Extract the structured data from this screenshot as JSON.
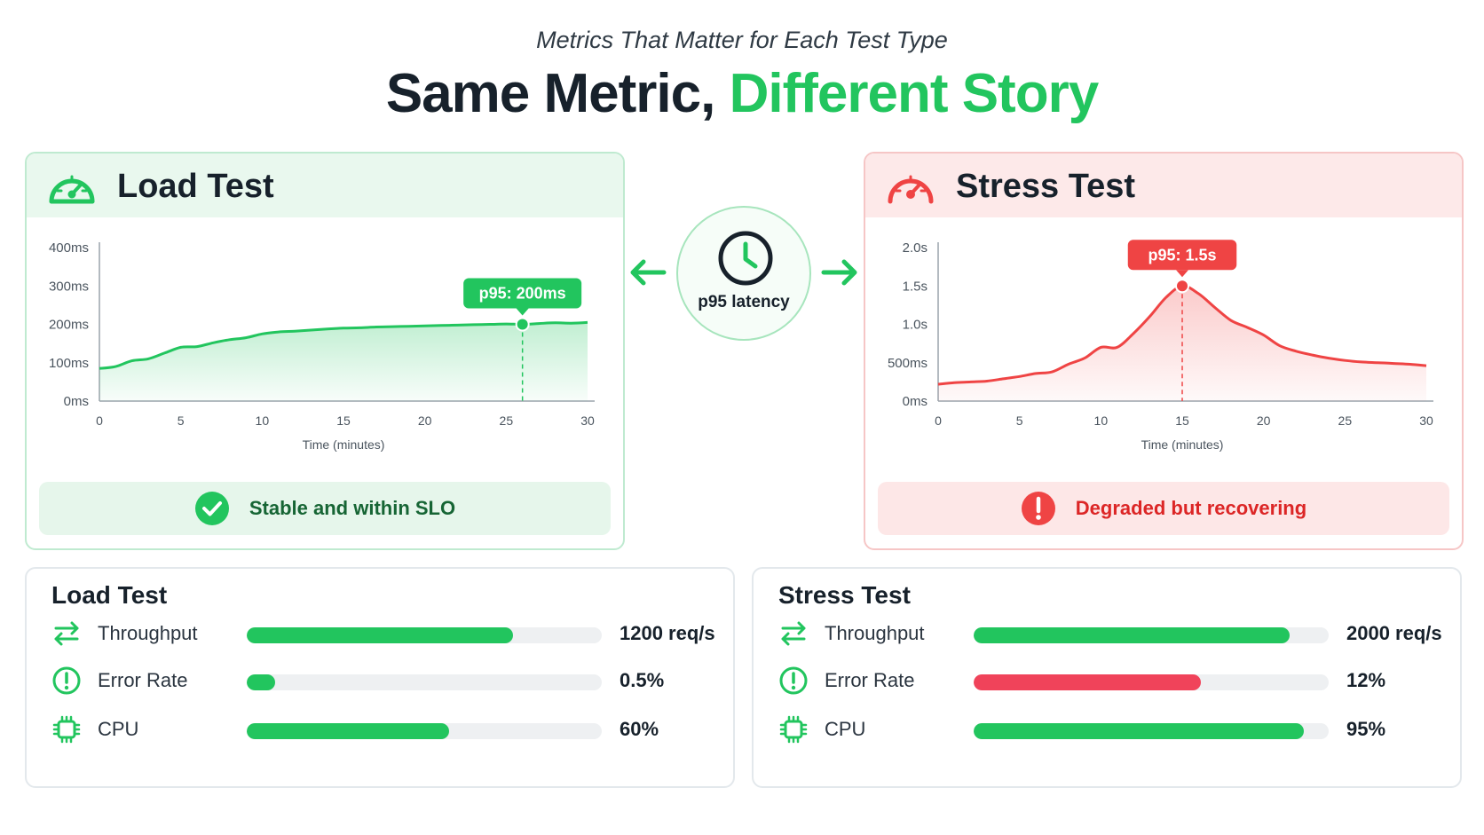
{
  "header": {
    "subtitle": "Metrics That Matter for Each Test Type",
    "title_main": "Same Metric, ",
    "title_accent": "Different Story"
  },
  "center": {
    "label": "p95 latency",
    "icon": "clock-icon"
  },
  "colors": {
    "green": "#22c55e",
    "red": "#ef4444",
    "dark": "#17212b"
  },
  "chart_data": [
    {
      "type": "line",
      "panel_title": "Load Test",
      "title": "",
      "xlabel": "Time (minutes)",
      "ylabel": "",
      "xlim": [
        0,
        30
      ],
      "ylim": [
        0,
        400
      ],
      "x_ticks": [
        0,
        5,
        10,
        15,
        20,
        25,
        30
      ],
      "x_tick_labels": [
        "0",
        "5",
        "10",
        "15",
        "20",
        "25",
        "30"
      ],
      "y_ticks": [
        0,
        100,
        200,
        300,
        400
      ],
      "y_tick_labels": [
        "0ms",
        "100ms",
        "200ms",
        "300ms",
        "400ms"
      ],
      "color": "#22c55e",
      "x": [
        0,
        1,
        2,
        3,
        4,
        5,
        6,
        7,
        8,
        9,
        10,
        11,
        12,
        13,
        14,
        15,
        16,
        17,
        18,
        19,
        20,
        21,
        22,
        23,
        24,
        25,
        26,
        27,
        28,
        29,
        30
      ],
      "y": [
        85,
        90,
        105,
        110,
        125,
        140,
        142,
        152,
        160,
        165,
        175,
        180,
        182,
        185,
        188,
        190,
        191,
        193,
        194,
        195,
        196,
        197,
        198,
        199,
        200,
        201,
        200,
        202,
        204,
        203,
        205
      ],
      "highlight": {
        "x": 26,
        "y": 200,
        "label": "p95: 200ms"
      },
      "status": "Stable and within SLO"
    },
    {
      "type": "line",
      "panel_title": "Stress Test",
      "title": "",
      "xlabel": "Time (minutes)",
      "ylabel": "",
      "xlim": [
        0,
        30
      ],
      "ylim": [
        0,
        2000
      ],
      "x_ticks": [
        0,
        5,
        10,
        15,
        20,
        25,
        30
      ],
      "x_tick_labels": [
        "0",
        "5",
        "10",
        "15",
        "20",
        "25",
        "30"
      ],
      "y_ticks": [
        0,
        500,
        1000,
        1500,
        2000
      ],
      "y_tick_labels": [
        "0ms",
        "500ms",
        "1.0s",
        "1.5s",
        "2.0s"
      ],
      "color": "#ef4444",
      "x": [
        0,
        1,
        2,
        3,
        4,
        5,
        6,
        7,
        8,
        9,
        10,
        11,
        12,
        13,
        14,
        15,
        16,
        17,
        18,
        19,
        20,
        21,
        22,
        23,
        24,
        25,
        26,
        27,
        28,
        29,
        30
      ],
      "y": [
        220,
        240,
        250,
        260,
        290,
        320,
        360,
        380,
        480,
        560,
        700,
        700,
        880,
        1100,
        1350,
        1500,
        1400,
        1220,
        1050,
        960,
        860,
        720,
        650,
        600,
        560,
        530,
        510,
        500,
        490,
        480,
        460
      ],
      "highlight": {
        "x": 15,
        "y": 1500,
        "label": "p95: 1.5s"
      },
      "status": "Degraded but recovering"
    }
  ],
  "metrics": {
    "load": {
      "title": "Load Test",
      "rows": [
        {
          "label": "Throughput",
          "value": "1200 req/s",
          "fraction": 0.75,
          "color": "#22c55e",
          "icon": "arrows-exchange-icon"
        },
        {
          "label": "Error Rate",
          "value": "0.5%",
          "fraction": 0.08,
          "color": "#22c55e",
          "icon": "alert-circle-icon"
        },
        {
          "label": "CPU",
          "value": "60%",
          "fraction": 0.57,
          "color": "#22c55e",
          "icon": "cpu-chip-icon"
        }
      ]
    },
    "stress": {
      "title": "Stress Test",
      "rows": [
        {
          "label": "Throughput",
          "value": "2000 req/s",
          "fraction": 0.89,
          "color": "#22c55e",
          "icon": "arrows-exchange-icon"
        },
        {
          "label": "Error Rate",
          "value": "12%",
          "fraction": 0.64,
          "color": "#f0435a",
          "icon": "alert-circle-icon"
        },
        {
          "label": "CPU",
          "value": "95%",
          "fraction": 0.93,
          "color": "#22c55e",
          "icon": "cpu-chip-icon"
        }
      ]
    }
  }
}
